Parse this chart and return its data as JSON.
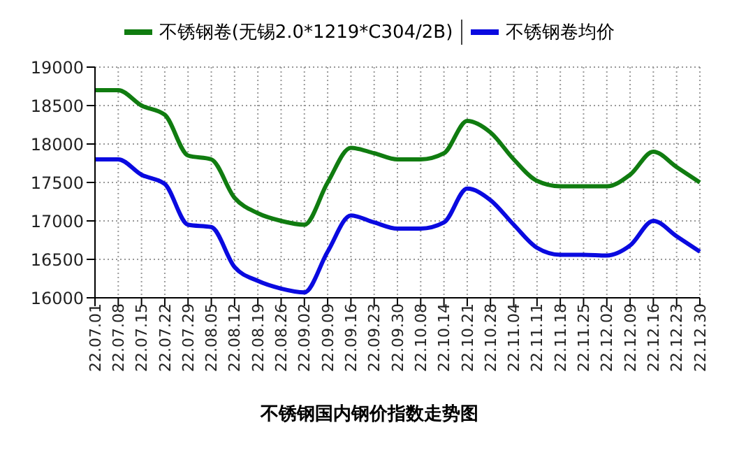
{
  "chart_data": {
    "type": "line",
    "title": "不锈钢国内钢价指数走势图",
    "categories": [
      "22.07.01",
      "22.07.08",
      "22.07.15",
      "22.07.22",
      "22.07.29",
      "22.08.05",
      "22.08.12",
      "22.08.19",
      "22.08.26",
      "22.09.02",
      "22.09.09",
      "22.09.16",
      "22.09.23",
      "22.09.30",
      "22.10.08",
      "22.10.14",
      "22.10.21",
      "22.10.28",
      "22.11.04",
      "22.11.11",
      "22.11.18",
      "22.11.25",
      "22.12.02",
      "22.12.09",
      "22.12.16",
      "22.12.23",
      "22.12.30"
    ],
    "series": [
      {
        "name": "不锈钢卷(无锡2.0*1219*C304/2B)",
        "color": "#107c10",
        "values": [
          18700,
          18700,
          18500,
          18380,
          17850,
          17800,
          17300,
          17100,
          17000,
          16950,
          17500,
          17950,
          17880,
          17800,
          17800,
          17880,
          18300,
          18150,
          17800,
          17520,
          17450,
          17450,
          17450,
          17600,
          17900,
          17700,
          17500
        ]
      },
      {
        "name": "不锈钢卷均价",
        "color": "#0a0ae0",
        "values": [
          17800,
          17800,
          17600,
          17480,
          16950,
          16920,
          16400,
          16220,
          16120,
          16070,
          16600,
          17070,
          16980,
          16900,
          16900,
          16980,
          17420,
          17270,
          16950,
          16650,
          16560,
          16560,
          16550,
          16680,
          17000,
          16800,
          16600
        ]
      }
    ],
    "ylim": [
      16000,
      19000
    ],
    "yticks": [
      16000,
      16500,
      17000,
      17500,
      18000,
      18500,
      19000
    ],
    "grid": true,
    "legend": "top",
    "marker": "none",
    "line_style": "solid"
  }
}
